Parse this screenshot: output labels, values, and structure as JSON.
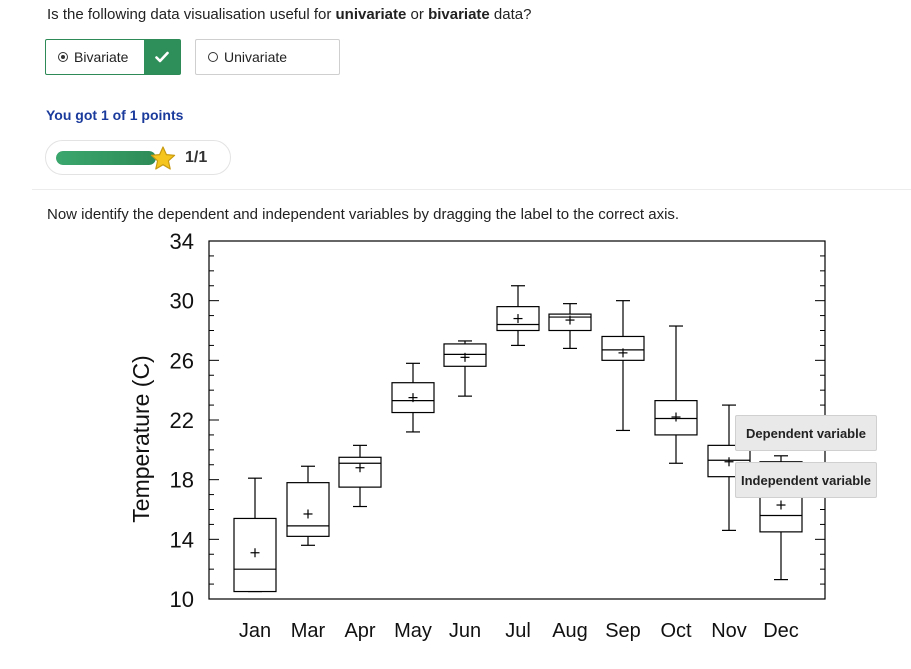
{
  "question": {
    "prefix": "Is the following data visualisation useful for ",
    "term1": "univariate",
    "middle": " or ",
    "term2": "bivariate",
    "suffix": " data?"
  },
  "options": [
    {
      "label": "Bivariate",
      "selected": true,
      "correct": true
    },
    {
      "label": "Univariate",
      "selected": false
    }
  ],
  "score": {
    "text": "You got 1 of 1 points",
    "progress_fraction": 1.0,
    "progress_label": "1/1"
  },
  "instruction": "Now identify the dependent and independent variables by dragging the label to the correct axis.",
  "drag_labels": [
    "Dependent variable",
    "Independent variable"
  ],
  "colors": {
    "accent_green": "#2f8f5a",
    "score_blue": "#1a3a9c",
    "star": "#f6c51d"
  },
  "chart_data": {
    "type": "boxplot",
    "ylabel": "Temperature (C)",
    "xlabel": "",
    "ylim": [
      10,
      34
    ],
    "yticks": [
      10,
      14,
      18,
      22,
      26,
      30,
      34
    ],
    "categories": [
      "Jan",
      "Mar",
      "Apr",
      "May",
      "Jun",
      "Jul",
      "Aug",
      "Sep",
      "Oct",
      "Nov",
      "Dec"
    ],
    "boxes": [
      {
        "min": 10.5,
        "q1": 10.5,
        "median": 12.0,
        "q3": 15.4,
        "max": 18.1,
        "mean": 13.1
      },
      {
        "min": 13.6,
        "q1": 14.2,
        "median": 14.9,
        "q3": 17.8,
        "max": 18.9,
        "mean": 15.7
      },
      {
        "min": 16.2,
        "q1": 17.5,
        "median": 19.1,
        "q3": 19.5,
        "max": 20.3,
        "mean": 18.8
      },
      {
        "min": 21.2,
        "q1": 22.5,
        "median": 23.3,
        "q3": 24.5,
        "max": 25.8,
        "mean": 23.5
      },
      {
        "min": 23.6,
        "q1": 25.6,
        "median": 26.4,
        "q3": 27.1,
        "max": 27.3,
        "mean": 26.2
      },
      {
        "min": 27.0,
        "q1": 28.0,
        "median": 28.4,
        "q3": 29.6,
        "max": 31.0,
        "mean": 28.8
      },
      {
        "min": 26.8,
        "q1": 28.0,
        "median": 28.9,
        "q3": 29.1,
        "max": 29.8,
        "mean": 28.7
      },
      {
        "min": 21.3,
        "q1": 26.0,
        "median": 26.7,
        "q3": 27.6,
        "max": 30.0,
        "mean": 26.5
      },
      {
        "min": 19.1,
        "q1": 21.0,
        "median": 22.1,
        "q3": 23.3,
        "max": 28.3,
        "mean": 22.2
      },
      {
        "min": 14.6,
        "q1": 18.2,
        "median": 19.3,
        "q3": 20.3,
        "max": 23.0,
        "mean": 19.2
      },
      {
        "min": 11.3,
        "q1": 14.5,
        "median": 15.6,
        "q3": 19.2,
        "max": 19.6,
        "mean": 16.3
      }
    ]
  }
}
